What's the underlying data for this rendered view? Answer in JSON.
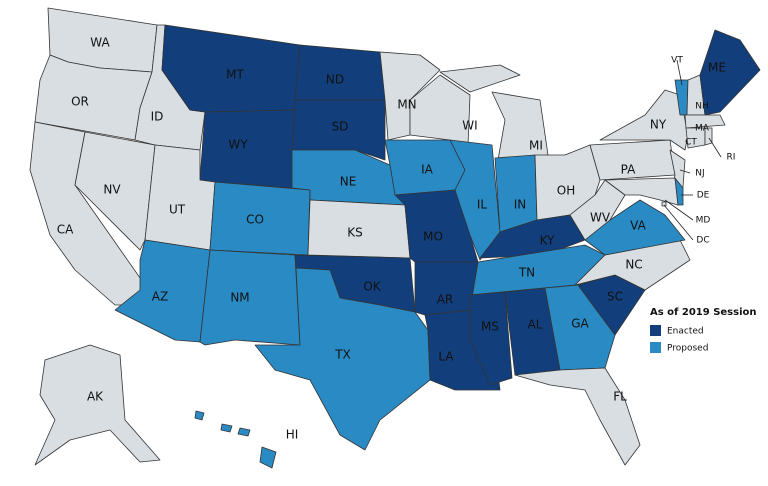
{
  "map": {
    "states": [
      {
        "label": "WA",
        "color": "#d9dee2"
      },
      {
        "label": "OR",
        "color": "#d9dee2"
      },
      {
        "label": "CA",
        "color": "#d9dee2"
      },
      {
        "label": "NV",
        "color": "#d9dee2"
      },
      {
        "label": "ID",
        "color": "#d9dee2"
      },
      {
        "label": "MT",
        "color": "#123f7b"
      },
      {
        "label": "WY",
        "color": "#123f7b"
      },
      {
        "label": "UT",
        "color": "#d9dee2"
      },
      {
        "label": "AZ",
        "color": "#2a8ac4"
      },
      {
        "label": "CO",
        "color": "#2a8ac4"
      },
      {
        "label": "NM",
        "color": "#2a8ac4"
      },
      {
        "label": "ND",
        "color": "#123f7b"
      },
      {
        "label": "SD",
        "color": "#123f7b"
      },
      {
        "label": "NE",
        "color": "#2a8ac4"
      },
      {
        "label": "KS",
        "color": "#d9dee2"
      },
      {
        "label": "OK",
        "color": "#123f7b"
      },
      {
        "label": "TX",
        "color": "#2a8ac4"
      },
      {
        "label": "MN",
        "color": "#d9dee2"
      },
      {
        "label": "IA",
        "color": "#2a8ac4"
      },
      {
        "label": "MO",
        "color": "#123f7b"
      },
      {
        "label": "AR",
        "color": "#123f7b"
      },
      {
        "label": "LA",
        "color": "#123f7b"
      },
      {
        "label": "WI",
        "color": "#d9dee2"
      },
      {
        "label": "IL",
        "color": "#2a8ac4"
      },
      {
        "label": "MI",
        "color": "#d9dee2"
      },
      {
        "label": "IN",
        "color": "#2a8ac4"
      },
      {
        "label": "OH",
        "color": "#d9dee2"
      },
      {
        "label": "KY",
        "color": "#123f7b"
      },
      {
        "label": "TN",
        "color": "#2a8ac4"
      },
      {
        "label": "MS",
        "color": "#123f7b"
      },
      {
        "label": "AL",
        "color": "#123f7b"
      },
      {
        "label": "GA",
        "color": "#2a8ac4"
      },
      {
        "label": "FL",
        "color": "#d9dee2"
      },
      {
        "label": "SC",
        "color": "#123f7b"
      },
      {
        "label": "NC",
        "color": "#d9dee2"
      },
      {
        "label": "VA",
        "color": "#2a8ac4"
      },
      {
        "label": "WV",
        "color": "#d9dee2"
      },
      {
        "label": "PA",
        "color": "#d9dee2"
      },
      {
        "label": "NY",
        "color": "#d9dee2"
      },
      {
        "label": "NJ",
        "color": "#d9dee2"
      },
      {
        "label": "MD",
        "color": "#d9dee2"
      },
      {
        "label": "DE",
        "color": "#2a8ac4"
      },
      {
        "label": "VT",
        "color": "#2a8ac4"
      },
      {
        "label": "NH",
        "color": "#d9dee2"
      },
      {
        "label": "ME",
        "color": "#123f7b"
      },
      {
        "label": "MA",
        "color": "#d9dee2"
      },
      {
        "label": "CT",
        "color": "#d9dee2"
      },
      {
        "label": "RI",
        "color": "#d9dee2"
      },
      {
        "label": "AK",
        "color": "#d9dee2"
      },
      {
        "label": "HI",
        "color": "#2a8ac4"
      },
      {
        "label": "DC",
        "color": "#d9dee2"
      }
    ],
    "legend": {
      "title": "As of 2019 Session",
      "items": [
        {
          "label": "Enacted",
          "color": "#123f7b"
        },
        {
          "label": "Proposed",
          "color": "#2a8ac4"
        }
      ]
    }
  }
}
